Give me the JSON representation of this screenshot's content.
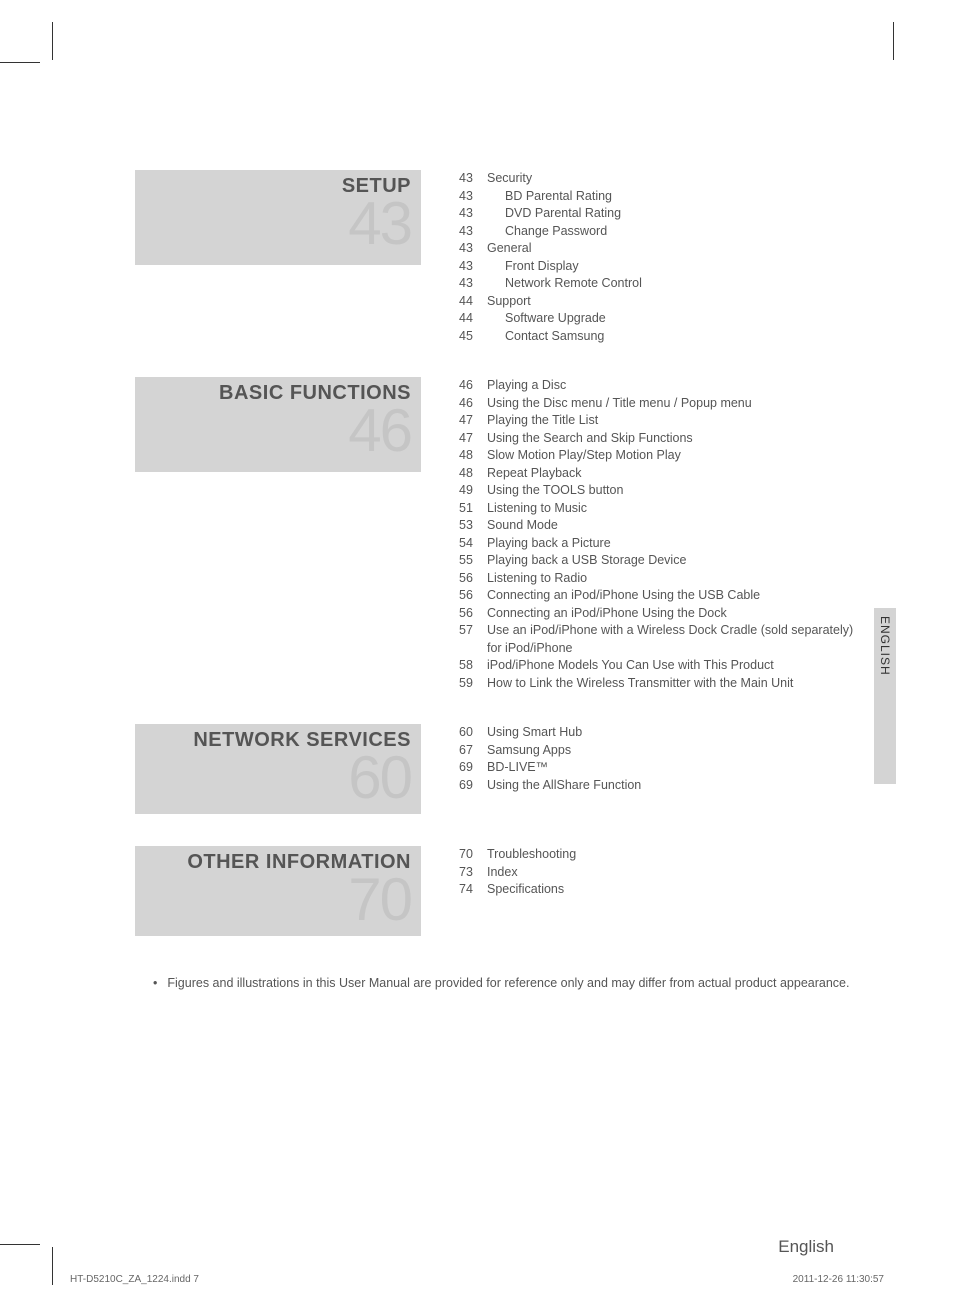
{
  "sections": [
    {
      "title": "SETUP",
      "number": "43",
      "blockHeight": 95,
      "items": [
        {
          "page": "43",
          "text": "Security",
          "indent": false
        },
        {
          "page": "43",
          "text": "BD Parental Rating",
          "indent": true
        },
        {
          "page": "43",
          "text": "DVD Parental Rating",
          "indent": true
        },
        {
          "page": "43",
          "text": "Change Password",
          "indent": true
        },
        {
          "page": "43",
          "text": "General",
          "indent": false
        },
        {
          "page": "43",
          "text": "Front Display",
          "indent": true
        },
        {
          "page": "43",
          "text": "Network Remote Control",
          "indent": true
        },
        {
          "page": "44",
          "text": "Support",
          "indent": false
        },
        {
          "page": "44",
          "text": "Software Upgrade",
          "indent": true
        },
        {
          "page": "45",
          "text": "Contact Samsung",
          "indent": true
        }
      ]
    },
    {
      "title": "BASIC FUNCTIONS",
      "number": "46",
      "blockHeight": 95,
      "items": [
        {
          "page": "46",
          "text": "Playing a Disc",
          "indent": false
        },
        {
          "page": "46",
          "text": "Using the Disc menu / Title menu / Popup menu",
          "indent": false
        },
        {
          "page": "47",
          "text": "Playing the Title List",
          "indent": false
        },
        {
          "page": "47",
          "text": "Using the Search and Skip Functions",
          "indent": false
        },
        {
          "page": "48",
          "text": "Slow Motion Play/Step Motion Play",
          "indent": false
        },
        {
          "page": "48",
          "text": "Repeat Playback",
          "indent": false
        },
        {
          "page": "49",
          "text": "Using the TOOLS button",
          "indent": false
        },
        {
          "page": "51",
          "text": "Listening to Music",
          "indent": false
        },
        {
          "page": "53",
          "text": "Sound Mode",
          "indent": false
        },
        {
          "page": "54",
          "text": "Playing back a Picture",
          "indent": false
        },
        {
          "page": "55",
          "text": "Playing back a USB Storage Device",
          "indent": false
        },
        {
          "page": "56",
          "text": "Listening to Radio",
          "indent": false
        },
        {
          "page": "56",
          "text": "Connecting an iPod/iPhone Using the USB Cable",
          "indent": false
        },
        {
          "page": "56",
          "text": "Connecting an iPod/iPhone Using the Dock",
          "indent": false
        },
        {
          "page": "57",
          "text": "Use an iPod/iPhone with a Wireless Dock Cradle (sold separately) for iPod/iPhone",
          "indent": false
        },
        {
          "page": "58",
          "text": "iPod/iPhone Models You Can Use with This Product",
          "indent": false
        },
        {
          "page": "59",
          "text": "How to Link the Wireless Transmitter with the Main Unit",
          "indent": false
        }
      ]
    },
    {
      "title": "NETWORK SERVICES",
      "number": "60",
      "blockHeight": 90,
      "items": [
        {
          "page": "60",
          "text": "Using Smart Hub",
          "indent": false
        },
        {
          "page": "67",
          "text": "Samsung Apps",
          "indent": false
        },
        {
          "page": "69",
          "text": "BD-LIVE™",
          "indent": false
        },
        {
          "page": "69",
          "text": "Using the AllShare Function",
          "indent": false
        }
      ]
    },
    {
      "title": "OTHER INFORMATION",
      "number": "70",
      "blockHeight": 90,
      "items": [
        {
          "page": "70",
          "text": "Troubleshooting",
          "indent": false
        },
        {
          "page": "73",
          "text": "Index",
          "indent": false
        },
        {
          "page": "74",
          "text": "Specifications",
          "indent": false
        }
      ]
    }
  ],
  "note": "Figures and illustrations in this User Manual are provided for reference only and may differ from actual product appearance.",
  "langTab": "ENGLISH",
  "footerLang": "English",
  "footerLeft": "HT-D5210C_ZA_1224.indd   7",
  "footerRight": "2011-12-26     11:30:57"
}
